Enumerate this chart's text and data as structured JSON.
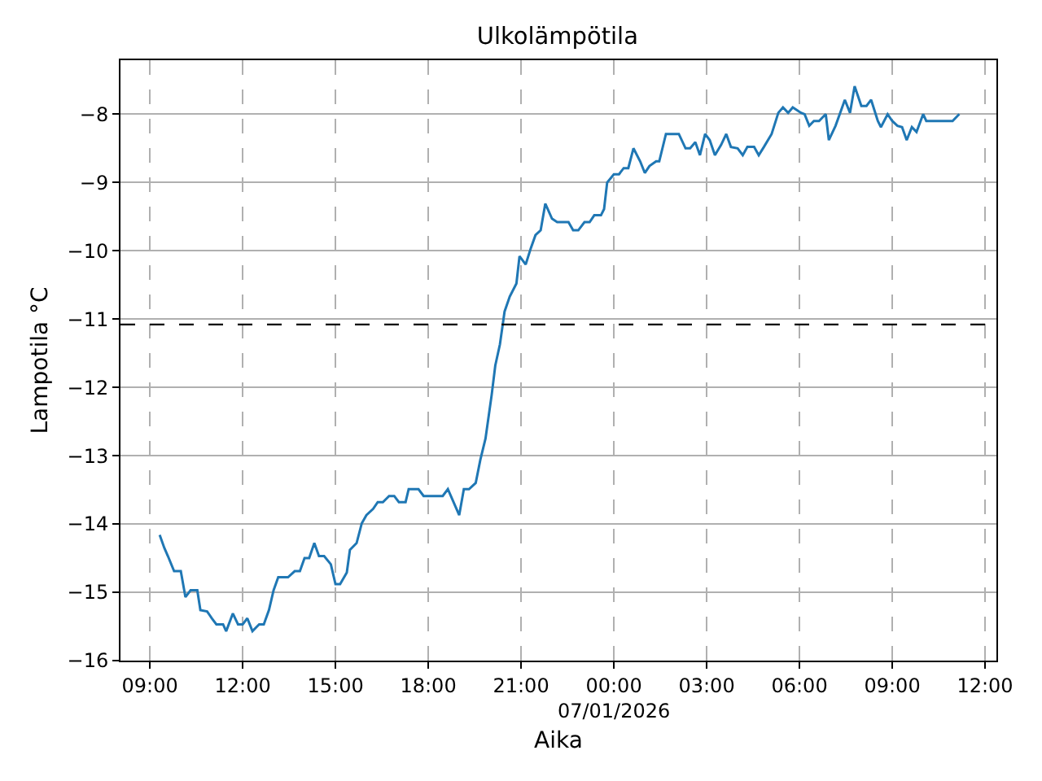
{
  "chart_data": {
    "type": "line",
    "title": "Ulkolämpötila",
    "xlabel": "Aika",
    "ylabel": "Lampotila °C",
    "x": [
      "2026-01-06T09:19",
      "2026-01-06T09:28",
      "2026-01-06T09:35",
      "2026-01-06T09:47",
      "2026-01-06T10:00",
      "2026-01-06T10:09",
      "2026-01-06T10:19",
      "2026-01-06T10:32",
      "2026-01-06T10:38",
      "2026-01-06T10:51",
      "2026-01-06T11:00",
      "2026-01-06T11:09",
      "2026-01-06T11:22",
      "2026-01-06T11:28",
      "2026-01-06T11:41",
      "2026-01-06T11:51",
      "2026-01-06T12:00",
      "2026-01-06T12:09",
      "2026-01-06T12:19",
      "2026-01-06T12:32",
      "2026-01-06T12:41",
      "2026-01-06T12:51",
      "2026-01-06T13:00",
      "2026-01-06T13:09",
      "2026-01-06T13:28",
      "2026-01-06T13:41",
      "2026-01-06T13:51",
      "2026-01-06T14:00",
      "2026-01-06T14:09",
      "2026-01-06T14:19",
      "2026-01-06T14:28",
      "2026-01-06T14:38",
      "2026-01-06T14:51",
      "2026-01-06T15:00",
      "2026-01-06T15:09",
      "2026-01-06T15:22",
      "2026-01-06T15:28",
      "2026-01-06T15:41",
      "2026-01-06T15:51",
      "2026-01-06T16:00",
      "2026-01-06T16:13",
      "2026-01-06T16:22",
      "2026-01-06T16:32",
      "2026-01-06T16:44",
      "2026-01-06T16:54",
      "2026-01-06T17:03",
      "2026-01-06T17:16",
      "2026-01-06T17:22",
      "2026-01-06T17:41",
      "2026-01-06T17:51",
      "2026-01-06T18:28",
      "2026-01-06T18:38",
      "2026-01-06T19:00",
      "2026-01-06T19:09",
      "2026-01-06T19:19",
      "2026-01-06T19:32",
      "2026-01-06T19:41",
      "2026-01-06T19:51",
      "2026-01-06T20:03",
      "2026-01-06T20:10",
      "2026-01-06T20:19",
      "2026-01-06T20:28",
      "2026-01-06T20:38",
      "2026-01-06T20:51",
      "2026-01-06T20:57",
      "2026-01-06T21:09",
      "2026-01-06T21:19",
      "2026-01-06T21:28",
      "2026-01-06T21:38",
      "2026-01-06T21:47",
      "2026-01-06T22:00",
      "2026-01-06T22:10",
      "2026-01-06T22:32",
      "2026-01-06T22:41",
      "2026-01-06T22:51",
      "2026-01-06T23:03",
      "2026-01-06T23:13",
      "2026-01-06T23:22",
      "2026-01-06T23:35",
      "2026-01-06T23:41",
      "2026-01-06T23:47",
      "2026-01-07T00:00",
      "2026-01-07T00:10",
      "2026-01-07T00:19",
      "2026-01-07T00:28",
      "2026-01-07T00:38",
      "2026-01-07T00:51",
      "2026-01-07T01:00",
      "2026-01-07T01:09",
      "2026-01-07T01:22",
      "2026-01-07T01:28",
      "2026-01-07T01:41",
      "2026-01-07T02:06",
      "2026-01-07T02:19",
      "2026-01-07T02:28",
      "2026-01-07T02:38",
      "2026-01-07T02:47",
      "2026-01-07T02:57",
      "2026-01-07T03:06",
      "2026-01-07T03:16",
      "2026-01-07T03:28",
      "2026-01-07T03:38",
      "2026-01-07T03:47",
      "2026-01-07T04:00",
      "2026-01-07T04:10",
      "2026-01-07T04:19",
      "2026-01-07T04:32",
      "2026-01-07T04:41",
      "2026-01-07T04:51",
      "2026-01-07T05:06",
      "2026-01-07T05:19",
      "2026-01-07T05:28",
      "2026-01-07T05:38",
      "2026-01-07T05:47",
      "2026-01-07T06:03",
      "2026-01-07T06:10",
      "2026-01-07T06:19",
      "2026-01-07T06:28",
      "2026-01-07T06:38",
      "2026-01-07T06:51",
      "2026-01-07T06:57",
      "2026-01-07T07:10",
      "2026-01-07T07:19",
      "2026-01-07T07:28",
      "2026-01-07T07:38",
      "2026-01-07T07:47",
      "2026-01-07T08:00",
      "2026-01-07T08:10",
      "2026-01-07T08:19",
      "2026-01-07T08:32",
      "2026-01-07T08:38",
      "2026-01-07T08:51",
      "2026-01-07T09:00",
      "2026-01-07T09:10",
      "2026-01-07T09:19",
      "2026-01-07T09:28",
      "2026-01-07T09:38",
      "2026-01-07T09:47",
      "2026-01-07T10:00",
      "2026-01-07T10:06",
      "2026-01-07T10:32",
      "2026-01-07T10:57",
      "2026-01-07T11:10"
    ],
    "series": [
      {
        "color": "#1f77b4",
        "values": [
          -14.16,
          -14.35,
          -14.47,
          -14.69,
          -14.69,
          -15.07,
          -14.97,
          -14.97,
          -15.26,
          -15.28,
          -15.38,
          -15.47,
          -15.47,
          -15.57,
          -15.31,
          -15.47,
          -15.47,
          -15.38,
          -15.57,
          -15.47,
          -15.47,
          -15.26,
          -14.97,
          -14.78,
          -14.78,
          -14.69,
          -14.69,
          -14.5,
          -14.5,
          -14.28,
          -14.47,
          -14.47,
          -14.59,
          -14.88,
          -14.88,
          -14.71,
          -14.38,
          -14.28,
          -13.99,
          -13.87,
          -13.78,
          -13.68,
          -13.68,
          -13.59,
          -13.59,
          -13.68,
          -13.68,
          -13.49,
          -13.49,
          -13.59,
          -13.59,
          -13.49,
          -13.87,
          -13.49,
          -13.49,
          -13.4,
          -13.06,
          -12.75,
          -12.11,
          -11.68,
          -11.37,
          -10.89,
          -10.67,
          -10.48,
          -10.08,
          -10.2,
          -9.96,
          -9.77,
          -9.7,
          -9.31,
          -9.53,
          -9.58,
          -9.58,
          -9.7,
          -9.7,
          -9.58,
          -9.58,
          -9.48,
          -9.48,
          -9.39,
          -9.0,
          -8.88,
          -8.88,
          -8.79,
          -8.79,
          -8.5,
          -8.69,
          -8.86,
          -8.76,
          -8.69,
          -8.69,
          -8.29,
          -8.29,
          -8.5,
          -8.5,
          -8.41,
          -8.6,
          -8.29,
          -8.38,
          -8.6,
          -8.45,
          -8.29,
          -8.48,
          -8.5,
          -8.6,
          -8.48,
          -8.48,
          -8.6,
          -8.48,
          -8.29,
          -7.98,
          -7.9,
          -7.98,
          -7.9,
          -7.98,
          -8.0,
          -8.17,
          -8.1,
          -8.1,
          -8.0,
          -8.38,
          -8.17,
          -7.98,
          -7.79,
          -7.98,
          -7.59,
          -7.88,
          -7.88,
          -7.79,
          -8.1,
          -8.19,
          -8.0,
          -8.1,
          -8.17,
          -8.19,
          -8.38,
          -8.19,
          -8.26,
          -8.0,
          -8.1,
          -8.1,
          -8.1,
          -8.0
        ]
      }
    ],
    "xlim": [
      "2026-01-06T08:03",
      "2026-01-07T12:22"
    ],
    "xticks": [
      {
        "value": "2026-01-06T09:00",
        "label": "09:00"
      },
      {
        "value": "2026-01-06T12:00",
        "label": "12:00"
      },
      {
        "value": "2026-01-06T15:00",
        "label": "15:00"
      },
      {
        "value": "2026-01-06T18:00",
        "label": "18:00"
      },
      {
        "value": "2026-01-06T21:00",
        "label": "21:00"
      },
      {
        "value": "2026-01-07T00:00",
        "label": "00:00\n07/01/2026"
      },
      {
        "value": "2026-01-07T03:00",
        "label": "03:00"
      },
      {
        "value": "2026-01-07T06:00",
        "label": "06:00"
      },
      {
        "value": "2026-01-07T09:00",
        "label": "09:00"
      },
      {
        "value": "2026-01-07T12:00",
        "label": "12:00"
      }
    ],
    "ylim": [
      -16,
      -7.21
    ],
    "yticks": [
      {
        "value": -16,
        "label": "−16"
      },
      {
        "value": -15,
        "label": "−15"
      },
      {
        "value": -14,
        "label": "−14"
      },
      {
        "value": -13,
        "label": "−13"
      },
      {
        "value": -12,
        "label": "−12"
      },
      {
        "value": -11,
        "label": "−11"
      },
      {
        "value": -10,
        "label": "−10"
      },
      {
        "value": -9,
        "label": "−9"
      },
      {
        "value": -8,
        "label": "−8"
      }
    ],
    "ref_lines": [
      {
        "axis": "y",
        "value": -11.08,
        "color": "#000000",
        "line_style": "dashed"
      }
    ],
    "grid": true,
    "marker": "none",
    "line_style": "solid"
  }
}
